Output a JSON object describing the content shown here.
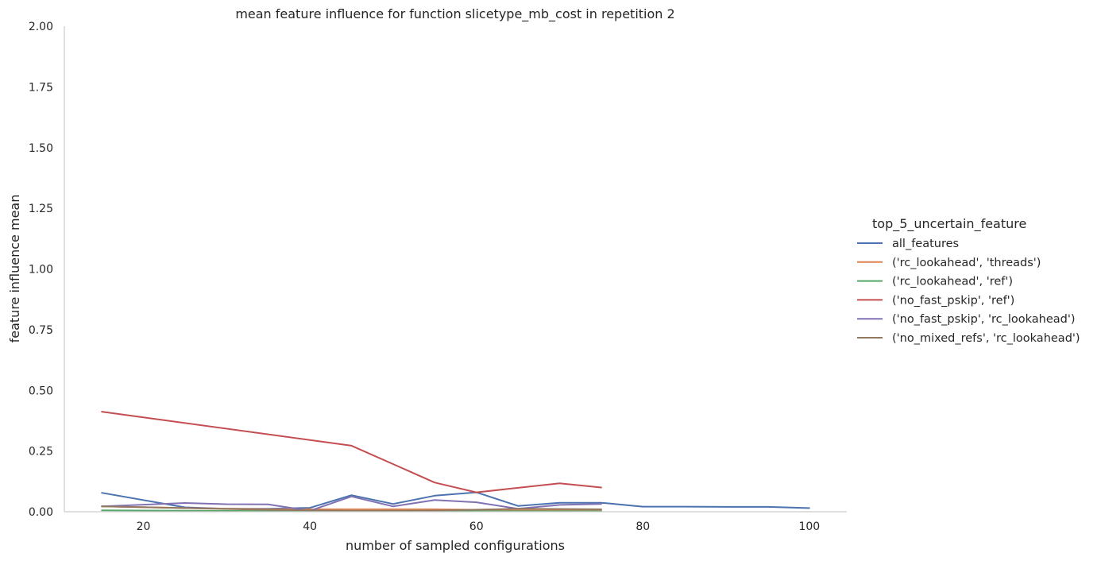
{
  "chart_data": {
    "type": "line",
    "title": "mean feature influence for function slicetype_mb_cost in repetition 2",
    "xlabel": "number of sampled configurations",
    "ylabel": "feature influence mean",
    "xlim": [
      10.5,
      104.5
    ],
    "ylim": [
      0,
      2
    ],
    "x_ticks": [
      20,
      40,
      60,
      80,
      100
    ],
    "y_ticks": [
      0.0,
      0.25,
      0.5,
      0.75,
      1.0,
      1.25,
      1.5,
      1.75,
      2.0
    ],
    "grid": false,
    "legend_title": "top_5_uncertain_feature",
    "legend_position": "center-right, outside plot",
    "series": [
      {
        "name": "all_features",
        "color": "#4c72b0",
        "x": [
          15,
          25,
          30,
          35,
          40,
          45,
          50,
          55,
          60,
          65,
          70,
          75,
          80,
          85,
          90,
          95,
          100
        ],
        "y": [
          0.078,
          0.018,
          0.012,
          0.012,
          0.016,
          0.068,
          0.032,
          0.066,
          0.08,
          0.024,
          0.037,
          0.037,
          0.021,
          0.021,
          0.02,
          0.02,
          0.015
        ]
      },
      {
        "name": "('rc_lookahead', 'threads')",
        "color": "#dd8452",
        "x": [
          15,
          25,
          35,
          45,
          55,
          65,
          75
        ],
        "y": [
          0.022,
          0.015,
          0.01,
          0.01,
          0.01,
          0.006,
          0.006
        ]
      },
      {
        "name": "('rc_lookahead', 'ref')",
        "color": "#55a868",
        "x": [
          15,
          25,
          35,
          45,
          55,
          65,
          75
        ],
        "y": [
          0.006,
          0.004,
          0.003,
          0.003,
          0.003,
          0.002,
          0.002
        ]
      },
      {
        "name": "('no_fast_pskip', 'ref')",
        "color": "#c44e52",
        "x": [
          15,
          45,
          55,
          60,
          70,
          75
        ],
        "y": [
          0.412,
          0.272,
          0.12,
          0.08,
          0.117,
          0.1
        ]
      },
      {
        "name": "('no_fast_pskip', 'rc_lookahead')",
        "color": "#8172b3",
        "x": [
          15,
          25,
          30,
          35,
          40,
          45,
          50,
          55,
          60,
          65,
          70,
          75
        ],
        "y": [
          0.022,
          0.036,
          0.031,
          0.03,
          0.004,
          0.063,
          0.022,
          0.048,
          0.039,
          0.012,
          0.028,
          0.032
        ]
      },
      {
        "name": "('no_mixed_refs', 'rc_lookahead')",
        "color": "#937860",
        "x": [
          15,
          25,
          35,
          45,
          55,
          65,
          75
        ],
        "y": [
          0.022,
          0.015,
          0.008,
          0.004,
          0.005,
          0.012,
          0.01
        ]
      }
    ]
  }
}
